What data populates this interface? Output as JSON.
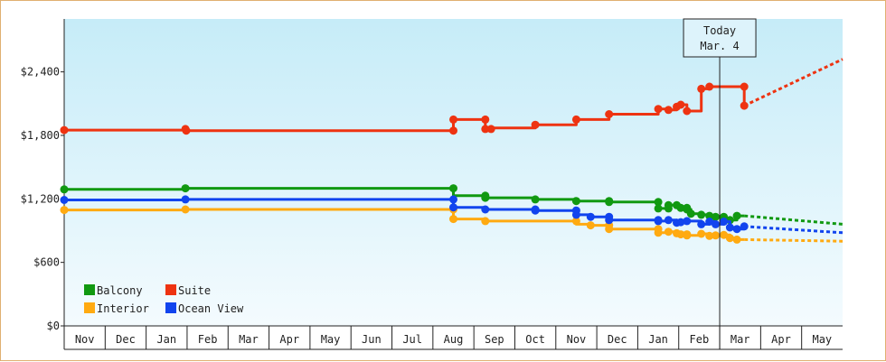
{
  "chart_data": {
    "type": "line",
    "title": "",
    "xlabel": "",
    "ylabel": "",
    "ylim": [
      0,
      2900
    ],
    "y_ticks": [
      {
        "value": 0,
        "label": "$0"
      },
      {
        "value": 600,
        "label": "$600"
      },
      {
        "value": 1200,
        "label": "$1,200"
      },
      {
        "value": 1800,
        "label": "$1,800"
      },
      {
        "value": 2400,
        "label": "$2,400"
      }
    ],
    "months": [
      "Nov",
      "Dec",
      "Jan",
      "Feb",
      "Mar",
      "Apr",
      "May",
      "Jun",
      "Jul",
      "Aug",
      "Sep",
      "Oct",
      "Nov",
      "Dec",
      "Jan",
      "Feb",
      "Mar",
      "Apr",
      "May"
    ],
    "grid": false,
    "today": {
      "line1": "Today",
      "line2": "Mar. 4",
      "x": 16.0
    },
    "legend": {
      "placement": "bottom-left"
    },
    "series": [
      {
        "name": "Balcony",
        "color": "#119911",
        "points": [
          [
            0,
            1290
          ],
          [
            2.96,
            1290
          ],
          [
            2.96,
            1300
          ],
          [
            9.5,
            1300
          ],
          [
            9.5,
            1230
          ],
          [
            10.28,
            1230
          ],
          [
            10.28,
            1210
          ],
          [
            11.5,
            1210
          ],
          [
            11.5,
            1195
          ],
          [
            12.5,
            1195
          ],
          [
            12.5,
            1180
          ],
          [
            13.3,
            1180
          ],
          [
            13.3,
            1170
          ],
          [
            14.5,
            1170
          ],
          [
            14.5,
            1110
          ],
          [
            14.75,
            1110
          ],
          [
            14.75,
            1140
          ],
          [
            14.95,
            1140
          ],
          [
            14.95,
            1130
          ],
          [
            15.05,
            1130
          ],
          [
            15.05,
            1115
          ],
          [
            15.2,
            1115
          ],
          [
            15.2,
            1100
          ],
          [
            15.3,
            1100
          ],
          [
            15.3,
            1060
          ],
          [
            15.55,
            1060
          ],
          [
            15.55,
            1050
          ],
          [
            15.75,
            1050
          ],
          [
            15.75,
            1040
          ],
          [
            15.9,
            1040
          ],
          [
            15.9,
            1030
          ],
          [
            16.1,
            1030
          ],
          [
            16.1,
            1010
          ],
          [
            16.25,
            1010
          ],
          [
            16.25,
            1000
          ],
          [
            16.42,
            1000
          ],
          [
            16.42,
            1040
          ],
          [
            16.6,
            1040
          ]
        ],
        "markers": [
          [
            0,
            1290
          ],
          [
            2.96,
            1300
          ],
          [
            9.5,
            1300
          ],
          [
            10.28,
            1230
          ],
          [
            10.28,
            1210
          ],
          [
            11.5,
            1195
          ],
          [
            12.5,
            1180
          ],
          [
            13.3,
            1180
          ],
          [
            13.3,
            1170
          ],
          [
            14.5,
            1170
          ],
          [
            14.5,
            1110
          ],
          [
            14.75,
            1140
          ],
          [
            14.75,
            1110
          ],
          [
            14.95,
            1140
          ],
          [
            15.05,
            1115
          ],
          [
            15.2,
            1100
          ],
          [
            15.2,
            1115
          ],
          [
            15.3,
            1060
          ],
          [
            15.55,
            1050
          ],
          [
            15.75,
            1040
          ],
          [
            15.9,
            1030
          ],
          [
            16.1,
            1030
          ],
          [
            16.1,
            1010
          ],
          [
            16.25,
            1000
          ],
          [
            16.42,
            1040
          ]
        ],
        "projection": [
          [
            16.6,
            1040
          ],
          [
            19,
            960
          ]
        ]
      },
      {
        "name": "Suite",
        "color": "#ee3311",
        "points": [
          [
            0,
            1850
          ],
          [
            2.96,
            1850
          ],
          [
            2.96,
            1860
          ],
          [
            2.98,
            1860
          ],
          [
            2.98,
            1845
          ],
          [
            9.5,
            1845
          ],
          [
            9.5,
            1950
          ],
          [
            10.28,
            1950
          ],
          [
            10.28,
            1860
          ],
          [
            10.42,
            1860
          ],
          [
            10.42,
            1870
          ],
          [
            11.5,
            1870
          ],
          [
            11.5,
            1900
          ],
          [
            12.5,
            1900
          ],
          [
            12.5,
            1950
          ],
          [
            13.3,
            1950
          ],
          [
            13.3,
            2000
          ],
          [
            14.5,
            2000
          ],
          [
            14.5,
            2050
          ],
          [
            14.75,
            2050
          ],
          [
            14.75,
            2040
          ],
          [
            14.95,
            2040
          ],
          [
            14.95,
            2070
          ],
          [
            15.05,
            2070
          ],
          [
            15.05,
            2090
          ],
          [
            15.2,
            2090
          ],
          [
            15.2,
            2030
          ],
          [
            15.55,
            2030
          ],
          [
            15.55,
            2240
          ],
          [
            15.75,
            2240
          ],
          [
            15.75,
            2260
          ],
          [
            16.6,
            2260
          ],
          [
            16.6,
            2080
          ]
        ],
        "markers": [
          [
            0,
            1850
          ],
          [
            2.96,
            1860
          ],
          [
            2.98,
            1845
          ],
          [
            9.5,
            1845
          ],
          [
            9.5,
            1950
          ],
          [
            10.28,
            1950
          ],
          [
            10.28,
            1860
          ],
          [
            10.42,
            1860
          ],
          [
            11.5,
            1900
          ],
          [
            12.5,
            1950
          ],
          [
            13.3,
            2000
          ],
          [
            14.5,
            2050
          ],
          [
            14.75,
            2040
          ],
          [
            14.95,
            2070
          ],
          [
            15.05,
            2090
          ],
          [
            15.2,
            2030
          ],
          [
            15.55,
            2240
          ],
          [
            15.75,
            2260
          ],
          [
            16.6,
            2260
          ],
          [
            16.6,
            2080
          ]
        ],
        "projection": [
          [
            16.6,
            2080
          ],
          [
            19,
            2520
          ]
        ]
      },
      {
        "name": "Interior",
        "color": "#ffaa11",
        "points": [
          [
            0,
            1095
          ],
          [
            2.96,
            1095
          ],
          [
            2.96,
            1100
          ],
          [
            9.5,
            1100
          ],
          [
            9.5,
            1010
          ],
          [
            10.28,
            1010
          ],
          [
            10.28,
            990
          ],
          [
            12.5,
            990
          ],
          [
            12.5,
            960
          ],
          [
            12.85,
            960
          ],
          [
            12.85,
            950
          ],
          [
            13.3,
            950
          ],
          [
            13.3,
            915
          ],
          [
            14.5,
            915
          ],
          [
            14.5,
            880
          ],
          [
            14.75,
            880
          ],
          [
            14.75,
            890
          ],
          [
            14.95,
            890
          ],
          [
            14.95,
            875
          ],
          [
            15.05,
            875
          ],
          [
            15.05,
            865
          ],
          [
            15.2,
            865
          ],
          [
            15.2,
            855
          ],
          [
            15.55,
            855
          ],
          [
            15.55,
            870
          ],
          [
            15.75,
            870
          ],
          [
            15.75,
            850
          ],
          [
            15.9,
            850
          ],
          [
            15.9,
            855
          ],
          [
            16.1,
            855
          ],
          [
            16.1,
            860
          ],
          [
            16.25,
            860
          ],
          [
            16.25,
            830
          ],
          [
            16.42,
            830
          ],
          [
            16.42,
            815
          ],
          [
            16.6,
            815
          ]
        ],
        "markers": [
          [
            0,
            1095
          ],
          [
            2.96,
            1100
          ],
          [
            9.5,
            1100
          ],
          [
            9.5,
            1010
          ],
          [
            10.28,
            990
          ],
          [
            12.5,
            990
          ],
          [
            12.85,
            950
          ],
          [
            13.3,
            950
          ],
          [
            13.3,
            915
          ],
          [
            14.5,
            915
          ],
          [
            14.5,
            880
          ],
          [
            14.75,
            890
          ],
          [
            14.95,
            875
          ],
          [
            15.05,
            865
          ],
          [
            15.2,
            865
          ],
          [
            15.2,
            855
          ],
          [
            15.55,
            870
          ],
          [
            15.75,
            850
          ],
          [
            15.9,
            855
          ],
          [
            16.1,
            860
          ],
          [
            16.25,
            830
          ],
          [
            16.42,
            815
          ]
        ],
        "projection": [
          [
            16.6,
            815
          ],
          [
            19,
            800
          ]
        ]
      },
      {
        "name": "Ocean View",
        "color": "#1144ee",
        "points": [
          [
            0,
            1190
          ],
          [
            2.96,
            1190
          ],
          [
            2.96,
            1195
          ],
          [
            9.5,
            1195
          ],
          [
            9.5,
            1120
          ],
          [
            10.28,
            1120
          ],
          [
            10.28,
            1100
          ],
          [
            11.5,
            1100
          ],
          [
            11.5,
            1090
          ],
          [
            12.5,
            1090
          ],
          [
            12.5,
            1050
          ],
          [
            12.85,
            1050
          ],
          [
            12.85,
            1030
          ],
          [
            13.3,
            1030
          ],
          [
            13.3,
            1000
          ],
          [
            14.5,
            1000
          ],
          [
            14.5,
            990
          ],
          [
            14.75,
            990
          ],
          [
            14.75,
            1000
          ],
          [
            14.95,
            1000
          ],
          [
            14.95,
            975
          ],
          [
            15.05,
            975
          ],
          [
            15.05,
            980
          ],
          [
            15.2,
            980
          ],
          [
            15.2,
            990
          ],
          [
            15.55,
            990
          ],
          [
            15.55,
            960
          ],
          [
            15.75,
            960
          ],
          [
            15.75,
            985
          ],
          [
            15.9,
            985
          ],
          [
            15.9,
            960
          ],
          [
            16.1,
            960
          ],
          [
            16.1,
            985
          ],
          [
            16.25,
            985
          ],
          [
            16.25,
            930
          ],
          [
            16.42,
            930
          ],
          [
            16.42,
            915
          ],
          [
            16.6,
            915
          ],
          [
            16.6,
            940
          ]
        ],
        "markers": [
          [
            0,
            1190
          ],
          [
            2.96,
            1195
          ],
          [
            9.5,
            1195
          ],
          [
            9.5,
            1120
          ],
          [
            10.28,
            1100
          ],
          [
            11.5,
            1100
          ],
          [
            11.5,
            1090
          ],
          [
            12.5,
            1090
          ],
          [
            12.5,
            1050
          ],
          [
            12.85,
            1030
          ],
          [
            13.3,
            1030
          ],
          [
            13.3,
            1000
          ],
          [
            14.5,
            1000
          ],
          [
            14.5,
            990
          ],
          [
            14.75,
            1000
          ],
          [
            14.95,
            975
          ],
          [
            15.05,
            980
          ],
          [
            15.2,
            990
          ],
          [
            15.55,
            960
          ],
          [
            15.75,
            985
          ],
          [
            15.9,
            960
          ],
          [
            16.1,
            985
          ],
          [
            16.25,
            930
          ],
          [
            16.42,
            915
          ],
          [
            16.6,
            940
          ]
        ],
        "projection": [
          [
            16.6,
            940
          ],
          [
            19,
            880
          ]
        ]
      }
    ]
  }
}
